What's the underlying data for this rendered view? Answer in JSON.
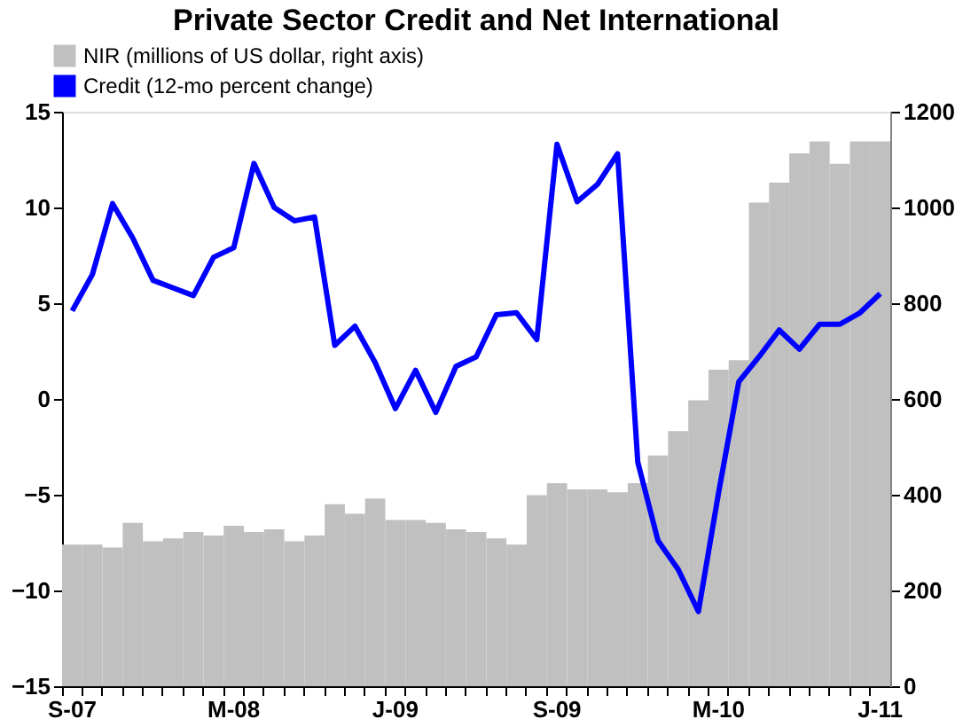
{
  "chart_data": {
    "type": "bar",
    "title": "Private Sector Credit and Net International",
    "categories": [
      "S-07",
      null,
      null,
      null,
      null,
      null,
      null,
      null,
      "M-08",
      null,
      null,
      null,
      null,
      null,
      null,
      null,
      "J-09",
      null,
      null,
      null,
      null,
      null,
      null,
      null,
      "S-09",
      null,
      null,
      null,
      null,
      null,
      null,
      null,
      "M-10",
      null,
      null,
      null,
      null,
      null,
      null,
      null,
      "J-11"
    ],
    "series": [
      {
        "name": "NIR (millions of US dollar, right axis)",
        "axis": "y2",
        "color": "#c0c0c0",
        "values": [
          296,
          296,
          290,
          341,
          303,
          309,
          322,
          315,
          335,
          322,
          328,
          303,
          315,
          380,
          360,
          392,
          347,
          347,
          341,
          328,
          322,
          309,
          296,
          399,
          424,
          411,
          411,
          405,
          424,
          482,
          533,
          597,
          661,
          681,
          1010,
          1052,
          1113,
          1138,
          1091,
          1138,
          1138
        ]
      },
      {
        "name": "Credit (12-mo percent change)",
        "type": "line",
        "color": "#0000ff",
        "values": [
          4.6,
          6.5,
          10.2,
          8.4,
          6.2,
          5.8,
          5.4,
          7.4,
          7.9,
          12.3,
          10.0,
          9.3,
          9.5,
          2.8,
          3.8,
          1.9,
          -0.5,
          1.5,
          -0.7,
          1.7,
          2.2,
          4.4,
          4.5,
          3.1,
          13.3,
          10.3,
          11.2,
          12.8,
          -3.3,
          -7.4,
          -8.9,
          -11.1,
          -4.9,
          0.9,
          2.2,
          3.6,
          2.6,
          3.9,
          3.9,
          4.5,
          5.5
        ]
      }
    ],
    "ylim": [
      -15,
      15
    ],
    "yticks": [
      -15,
      -10,
      -5,
      0,
      5,
      10,
      15
    ],
    "y2lim": [
      0,
      1200
    ],
    "y2ticks": [
      0,
      200,
      400,
      600,
      800,
      1000,
      1200
    ],
    "grid": false,
    "legend": "top left",
    "line_style": "solid"
  }
}
